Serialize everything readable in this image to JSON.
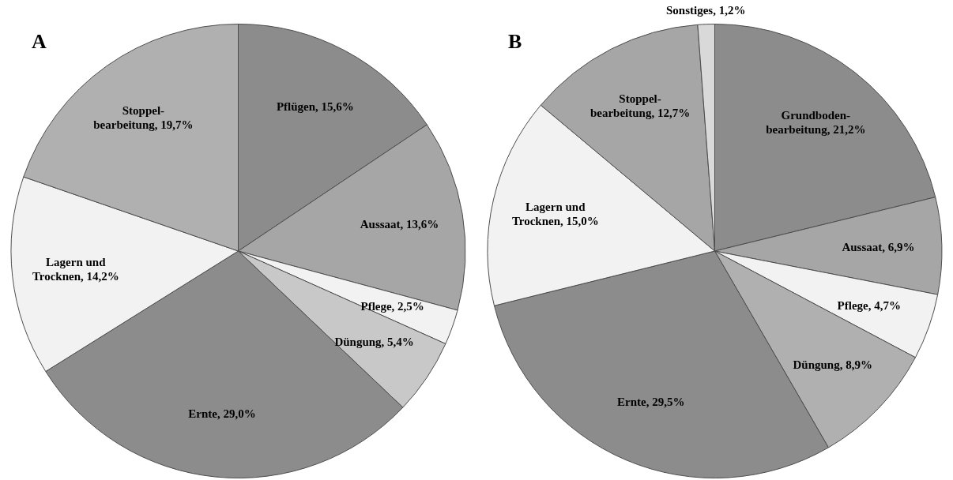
{
  "chart_data": [
    {
      "type": "pie",
      "title": "A",
      "categories": [
        "Pflügen",
        "Aussaat",
        "Pflege",
        "Düngung",
        "Ernte",
        "Lagern und Trocknen",
        "Stoppel-bearbeitung"
      ],
      "values": [
        15.6,
        13.6,
        2.5,
        5.4,
        29.0,
        14.2,
        19.7
      ],
      "value_labels": [
        "15,6%",
        "13,6%",
        "2,5%",
        "5,4%",
        "29,0%",
        "14,2%",
        "19,7%"
      ],
      "colors": [
        "#8c8c8c",
        "#a6a6a6",
        "#f2f2f2",
        "#c8c8c8",
        "#8c8c8c",
        "#f2f2f2",
        "#b0b0b0"
      ]
    },
    {
      "type": "pie",
      "title": "B",
      "categories": [
        "Grundboden-bearbeitung",
        "Aussaat",
        "Pflege",
        "Düngung",
        "Ernte",
        "Lagern und Trocknen",
        "Stoppel-bearbeitung",
        "Sonstiges"
      ],
      "values": [
        21.2,
        6.9,
        4.7,
        8.9,
        29.5,
        15.0,
        12.7,
        1.2
      ],
      "value_labels": [
        "21,2%",
        "6,9%",
        "4,7%",
        "8,9%",
        "29,5%",
        "15,0%",
        "12,7%",
        "1,2%"
      ],
      "colors": [
        "#8c8c8c",
        "#a6a6a6",
        "#f2f2f2",
        "#b0b0b0",
        "#8c8c8c",
        "#f2f2f2",
        "#a6a6a6",
        "#d9d9d9"
      ]
    }
  ]
}
